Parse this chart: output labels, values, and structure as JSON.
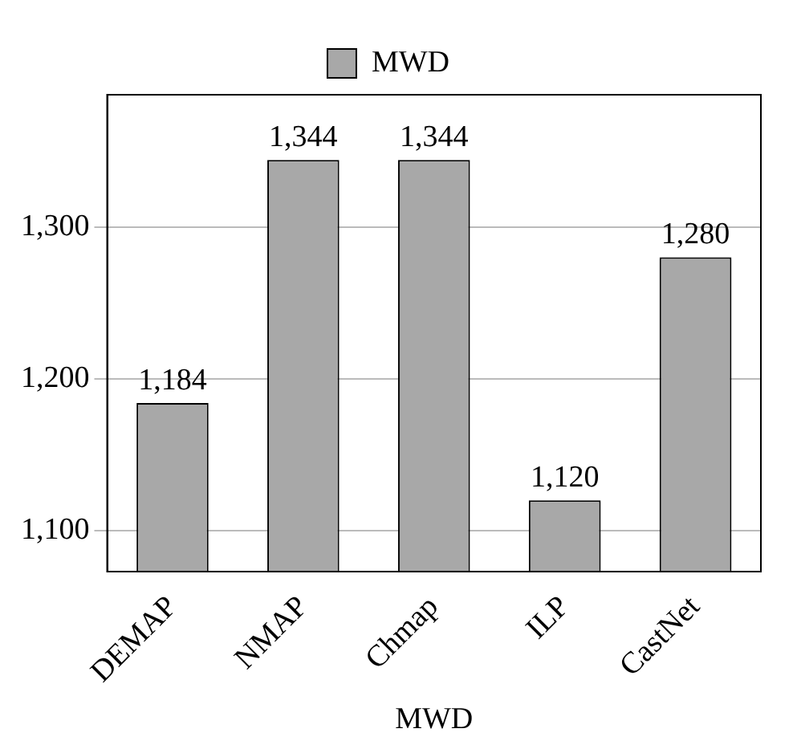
{
  "chart_data": {
    "type": "bar",
    "xlabel": "MWD",
    "categories": [
      "DEMAP",
      "NMAP",
      "Chmap",
      "ILP",
      "CastNet"
    ],
    "series": [
      {
        "name": "MWD",
        "color": "#a8a8a8",
        "values": [
          1184,
          1344,
          1344,
          1120,
          1280
        ],
        "value_labels": [
          "1,184",
          "1,344",
          "1,344",
          "1,120",
          "1,280"
        ]
      }
    ],
    "ylim": [
      1073,
      1387
    ],
    "yticks": [
      {
        "value": 1100,
        "label": "1,100"
      },
      {
        "value": 1200,
        "label": "1,200"
      },
      {
        "value": 1300,
        "label": "1,300"
      }
    ],
    "grid": "y",
    "legend": "top"
  }
}
